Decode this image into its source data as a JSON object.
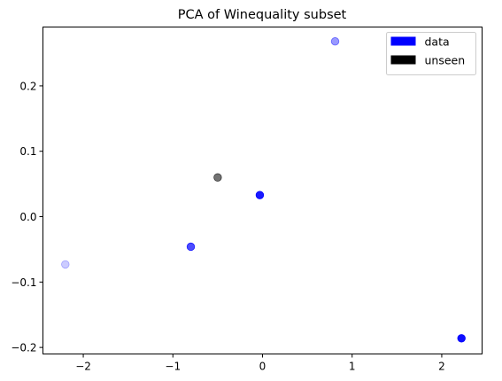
{
  "chart_data": {
    "type": "scatter",
    "title": "PCA of Winequality subset",
    "xlabel": "",
    "ylabel": "",
    "xlim": [
      -2.45,
      2.45
    ],
    "ylim": [
      -0.21,
      0.29
    ],
    "xticks": [
      -2,
      -1,
      0,
      1,
      2
    ],
    "xtick_labels": [
      "−2",
      "−1",
      "0",
      "1",
      "2"
    ],
    "yticks": [
      -0.2,
      -0.1,
      0.0,
      0.1,
      0.2
    ],
    "ytick_labels": [
      "−0.2",
      "−0.1",
      "0.0",
      "0.1",
      "0.2"
    ],
    "grid": false,
    "legend_position": "top-right",
    "legend": [
      {
        "label": "data",
        "color": "#0000ff"
      },
      {
        "label": "unseen",
        "color": "#000000"
      }
    ],
    "points": [
      {
        "x": 0.81,
        "y": 0.268,
        "color": "#0000ff",
        "alpha": 0.4,
        "group": "data"
      },
      {
        "x": -0.5,
        "y": 0.06,
        "color": "#000000",
        "alpha": 0.55,
        "group": "unseen"
      },
      {
        "x": -0.03,
        "y": 0.033,
        "color": "#0000ff",
        "alpha": 0.9,
        "group": "data"
      },
      {
        "x": -0.8,
        "y": -0.046,
        "color": "#0000ff",
        "alpha": 0.7,
        "group": "data"
      },
      {
        "x": -2.2,
        "y": -0.073,
        "color": "#0000ff",
        "alpha": 0.2,
        "group": "data"
      },
      {
        "x": 2.22,
        "y": -0.186,
        "color": "#0000ff",
        "alpha": 0.95,
        "group": "data"
      }
    ]
  }
}
